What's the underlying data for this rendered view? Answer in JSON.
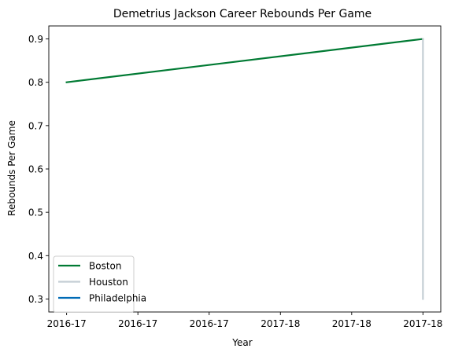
{
  "chart_data": {
    "type": "line",
    "title": "Demetrius Jackson Career Rebounds Per Game",
    "xlabel": "Year",
    "ylabel": "Rebounds Per Game",
    "x_tick_labels": [
      "2016-17",
      "2016-17",
      "2016-17",
      "2017-18",
      "2017-18",
      "2017-18"
    ],
    "xlim": [
      -0.25,
      5.25
    ],
    "ylim": [
      0.27,
      0.93
    ],
    "yticks": [
      0.3,
      0.4,
      0.5,
      0.6,
      0.7,
      0.8,
      0.9
    ],
    "grid": false,
    "legend_position": "lower-left",
    "series": [
      {
        "name": "Boston",
        "color": "#007A33",
        "points": [
          {
            "x": 0,
            "y": 0.8
          },
          {
            "x": 5,
            "y": 0.9
          }
        ]
      },
      {
        "name": "Houston",
        "color": "#C4CED4",
        "points": [
          {
            "x": 5,
            "y": 0.9
          },
          {
            "x": 5,
            "y": 0.3
          }
        ]
      },
      {
        "name": "Philadelphia",
        "color": "#006BB6",
        "points": []
      }
    ]
  }
}
